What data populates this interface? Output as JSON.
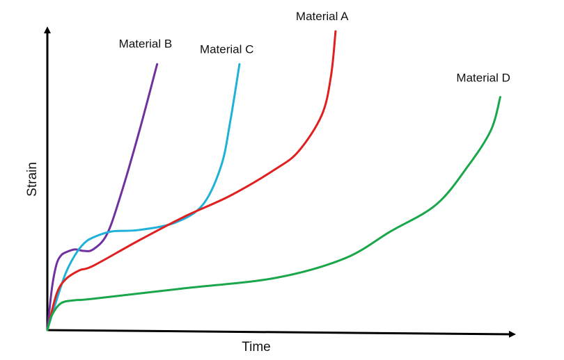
{
  "chart_data": {
    "type": "line",
    "title": "",
    "xlabel": "Time",
    "ylabel": "Strain",
    "xlim": [
      0,
      100
    ],
    "ylim": [
      0,
      100
    ],
    "ticks": false,
    "grid": false,
    "legend": "inline labels at curve ends",
    "series": [
      {
        "name": "Material B",
        "color": "#7030a0",
        "points": [
          [
            0,
            0
          ],
          [
            1,
            14
          ],
          [
            2,
            22
          ],
          [
            3,
            25
          ],
          [
            4,
            26
          ],
          [
            6,
            27
          ],
          [
            8,
            26.5
          ],
          [
            10,
            27
          ],
          [
            13,
            32
          ],
          [
            16,
            45
          ],
          [
            20,
            66
          ],
          [
            24,
            89
          ]
        ]
      },
      {
        "name": "Material C",
        "color": "#1fb1d8",
        "points": [
          [
            0,
            0
          ],
          [
            2,
            10
          ],
          [
            4,
            19
          ],
          [
            6,
            25
          ],
          [
            8,
            29
          ],
          [
            10,
            31
          ],
          [
            14,
            33
          ],
          [
            20,
            33.5
          ],
          [
            28,
            36
          ],
          [
            34,
            42
          ],
          [
            38,
            55
          ],
          [
            40,
            70
          ],
          [
            42,
            89
          ]
        ]
      },
      {
        "name": "Material A",
        "color": "#e02020",
        "points": [
          [
            0,
            0
          ],
          [
            2,
            12
          ],
          [
            4,
            17
          ],
          [
            7,
            20
          ],
          [
            10,
            21.5
          ],
          [
            20,
            30
          ],
          [
            30,
            38
          ],
          [
            40,
            45
          ],
          [
            50,
            54
          ],
          [
            55,
            60
          ],
          [
            60,
            72
          ],
          [
            62,
            85
          ],
          [
            63,
            100
          ]
        ]
      },
      {
        "name": "Material D",
        "color": "#1aa64b",
        "points": [
          [
            0,
            0
          ],
          [
            1,
            5
          ],
          [
            3,
            9
          ],
          [
            6,
            10
          ],
          [
            10,
            10.5
          ],
          [
            30,
            14
          ],
          [
            50,
            17.5
          ],
          [
            65,
            24
          ],
          [
            75,
            33
          ],
          [
            85,
            42
          ],
          [
            92,
            55
          ],
          [
            97,
            67
          ],
          [
            99,
            78
          ]
        ]
      }
    ]
  }
}
